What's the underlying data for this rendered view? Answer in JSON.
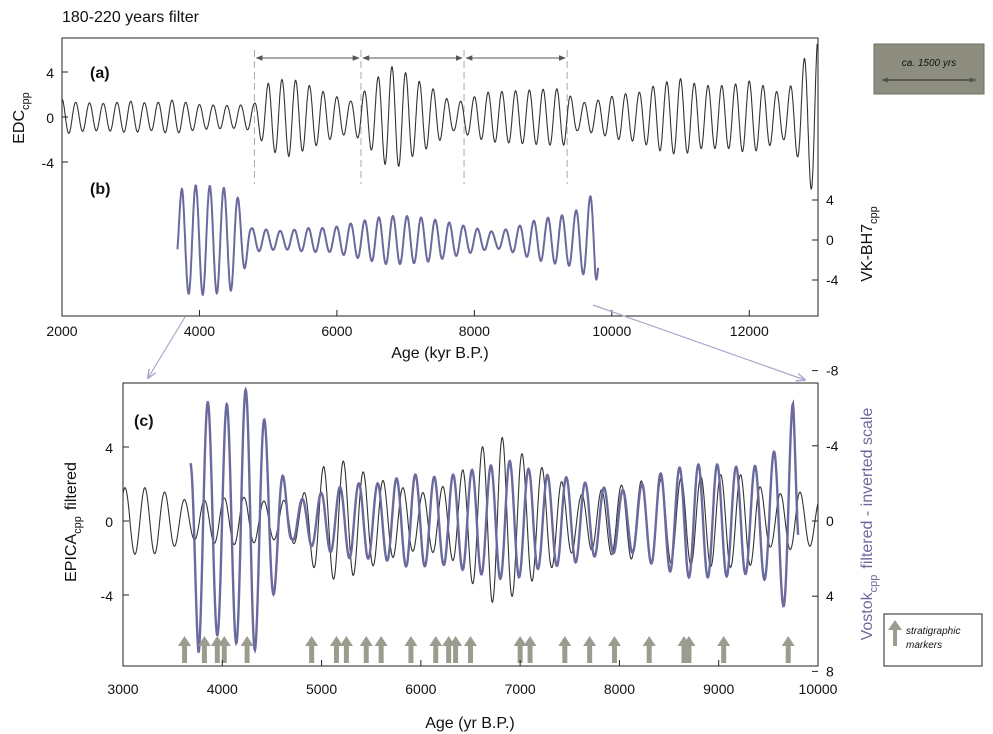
{
  "header": {
    "filter_label": "180-220 years filter"
  },
  "colors": {
    "edc": "#333333",
    "vostok": "#6a6a9e",
    "marker": "#9a9d8e",
    "arrow_line": "#a8a8cc",
    "note_box": "#8e8e80",
    "grid_dash": "#aaaaaa"
  },
  "annotation_box": {
    "text": "ca. 1500 yrs"
  },
  "legend_note": {
    "line1": "stratigraphic",
    "line2": "markers"
  },
  "chart_data": [
    {
      "type": "line",
      "panels": [
        {
          "label": "(a)",
          "ylabel_main": "EDC",
          "ylabel_sub": "cpp",
          "yticks": [
            "4",
            "0",
            "-4"
          ],
          "ylim": [
            -6,
            7
          ],
          "series": [
            {
              "description_color": "#333333",
              "values_summary": "180-220 yr filtered EDC record 2000-13000"
            }
          ]
        },
        {
          "label": "(b)",
          "ylabel_main": "VK-BH7",
          "ylabel_sub": "cpp",
          "yticks": [
            "4",
            "0",
            "-4"
          ],
          "ylim": [
            -6,
            6
          ],
          "x_range": [
            3680,
            9800
          ]
        }
      ],
      "x_ticks": [
        "2000",
        "4000",
        "6000",
        "8000",
        "10000",
        "12000"
      ],
      "xlim": [
        2000,
        13000
      ],
      "xlabel": "Age (kyr B.P.)",
      "interval_markers": [
        4800,
        6350,
        7850,
        9350
      ],
      "envelope_peaks": {
        "edc": [
          [
            2000,
            1.6
          ],
          [
            2200,
            1.3
          ],
          [
            2600,
            1.2
          ],
          [
            3000,
            1.4
          ],
          [
            3300,
            1.2
          ],
          [
            3600,
            1.5
          ],
          [
            4000,
            1.1
          ],
          [
            4500,
            1.0
          ],
          [
            4800,
            1.2
          ],
          [
            5000,
            3.0
          ],
          [
            5300,
            3.5
          ],
          [
            5600,
            2.8
          ],
          [
            5900,
            2.0
          ],
          [
            6200,
            1.4
          ],
          [
            6400,
            2.3
          ],
          [
            6700,
            4.2
          ],
          [
            6850,
            4.6
          ],
          [
            7100,
            3.5
          ],
          [
            7400,
            2.5
          ],
          [
            7700,
            1.2
          ],
          [
            7900,
            1.6
          ],
          [
            8200,
            2.2
          ],
          [
            8500,
            2.3
          ],
          [
            8800,
            2.4
          ],
          [
            9100,
            2.5
          ],
          [
            9300,
            2.5
          ],
          [
            9500,
            1.2
          ],
          [
            9800,
            1.5
          ],
          [
            10100,
            2.0
          ],
          [
            10400,
            2.2
          ],
          [
            10700,
            3.0
          ],
          [
            11000,
            3.4
          ],
          [
            11300,
            2.8
          ],
          [
            11700,
            2.8
          ],
          [
            12000,
            3.2
          ],
          [
            12200,
            2.8
          ],
          [
            12500,
            2.0
          ],
          [
            12700,
            3.5
          ],
          [
            12800,
            5.2
          ],
          [
            12950,
            7.0
          ]
        ],
        "vostok": [
          [
            3680,
            3.5
          ],
          [
            3750,
            5.3
          ],
          [
            4000,
            5.5
          ],
          [
            4300,
            5.3
          ],
          [
            4500,
            5.0
          ],
          [
            4650,
            3.0
          ],
          [
            4750,
            1.2
          ],
          [
            5200,
            0.9
          ],
          [
            5600,
            1.2
          ],
          [
            5900,
            1.2
          ],
          [
            6300,
            1.8
          ],
          [
            6700,
            2.4
          ],
          [
            7000,
            2.4
          ],
          [
            7300,
            2.2
          ],
          [
            7600,
            1.8
          ],
          [
            8000,
            1.2
          ],
          [
            8300,
            0.8
          ],
          [
            8600,
            1.3
          ],
          [
            8900,
            2.0
          ],
          [
            9200,
            2.4
          ],
          [
            9400,
            2.6
          ],
          [
            9600,
            3.5
          ],
          [
            9700,
            4.5
          ],
          [
            9760,
            5.0
          ],
          [
            9800,
            3.0
          ]
        ]
      }
    },
    {
      "type": "line",
      "label": "(c)",
      "xlabel": "Age (yr B.P.)",
      "x_ticks": [
        "3000",
        "4000",
        "5000",
        "6000",
        "7000",
        "8000",
        "9000",
        "10000"
      ],
      "xlim": [
        3000,
        10000
      ],
      "ylabel_left_main": "EPICA",
      "ylabel_left_sub": "cpp",
      "ylabel_left_suffix": "filtered",
      "ylabel_right_main": "Vostok",
      "ylabel_right_sub": "cpp",
      "ylabel_right_suffix": "filtered - inverted scale",
      "yticks_left": [
        "4",
        "0",
        "-4"
      ],
      "ylim_left": [
        -8,
        8
      ],
      "yticks_right": [
        "-8",
        "-4",
        "0",
        "4",
        "8"
      ],
      "ylim_right": [
        8,
        -8
      ],
      "stratigraphic_markers": [
        3620,
        3820,
        3950,
        4020,
        4250,
        4900,
        5150,
        5250,
        5450,
        5600,
        5900,
        6150,
        6280,
        6350,
        6500,
        7000,
        7100,
        7450,
        7700,
        7950,
        8300,
        8650,
        8700,
        9050,
        9700
      ]
    }
  ]
}
